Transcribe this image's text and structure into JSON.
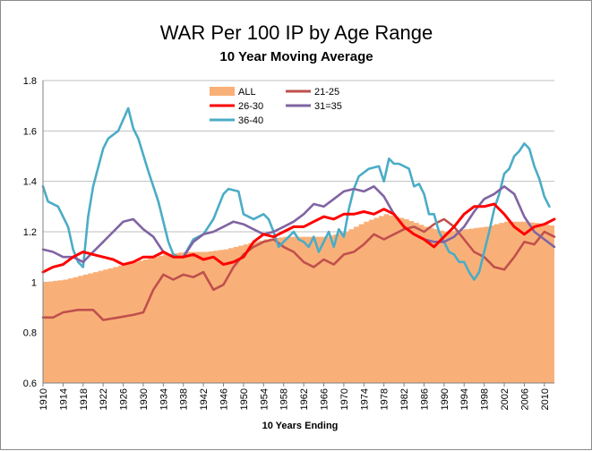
{
  "colors": {
    "ALL": "#f9b078",
    "21-25": "#c0504d",
    "26-30": "#ff0000",
    "31=35": "#8064a2",
    "36-40": "#4bacc6"
  },
  "chart_data": {
    "type": "line",
    "title": "WAR Per 100 IP by Age Range",
    "subtitle": "10 Year Moving Average",
    "xlabel": "10 Years Ending",
    "ylabel": "",
    "ylim": [
      0.6,
      1.8
    ],
    "yticks": [
      "0.6",
      "0.8",
      "1",
      "1.2",
      "1.4",
      "1.6",
      "1.8"
    ],
    "xlim": [
      1910,
      2012
    ],
    "xticks": [
      "1910",
      "1914",
      "1918",
      "1922",
      "1926",
      "1930",
      "1934",
      "1938",
      "1942",
      "1946",
      "1950",
      "1954",
      "1958",
      "1962",
      "1966",
      "1970",
      "1974",
      "1978",
      "1982",
      "1986",
      "1990",
      "1994",
      "1998",
      "2002",
      "2006",
      "2010"
    ],
    "grid": "horizontal",
    "legend": "top-center",
    "legend_order": [
      "ALL",
      "21-25",
      "26-30",
      "31=35",
      "36-40"
    ],
    "series": [
      {
        "name": "ALL",
        "kind": "area",
        "points": [
          [
            1910,
            1.0
          ],
          [
            1914,
            1.01
          ],
          [
            1918,
            1.03
          ],
          [
            1922,
            1.05
          ],
          [
            1926,
            1.07
          ],
          [
            1930,
            1.09
          ],
          [
            1934,
            1.11
          ],
          [
            1938,
            1.12
          ],
          [
            1942,
            1.12
          ],
          [
            1946,
            1.13
          ],
          [
            1950,
            1.15
          ],
          [
            1954,
            1.17
          ],
          [
            1958,
            1.18
          ],
          [
            1962,
            1.18
          ],
          [
            1966,
            1.18
          ],
          [
            1970,
            1.2
          ],
          [
            1974,
            1.24
          ],
          [
            1978,
            1.27
          ],
          [
            1982,
            1.25
          ],
          [
            1986,
            1.22
          ],
          [
            1990,
            1.2
          ],
          [
            1994,
            1.21
          ],
          [
            1998,
            1.22
          ],
          [
            2002,
            1.24
          ],
          [
            2006,
            1.24
          ],
          [
            2010,
            1.23
          ],
          [
            2012,
            1.22
          ]
        ]
      },
      {
        "name": "21-25",
        "kind": "line",
        "points": [
          [
            1910,
            0.86
          ],
          [
            1912,
            0.86
          ],
          [
            1914,
            0.88
          ],
          [
            1917,
            0.89
          ],
          [
            1920,
            0.89
          ],
          [
            1922,
            0.85
          ],
          [
            1925,
            0.86
          ],
          [
            1928,
            0.87
          ],
          [
            1930,
            0.88
          ],
          [
            1932,
            0.97
          ],
          [
            1934,
            1.03
          ],
          [
            1936,
            1.01
          ],
          [
            1938,
            1.03
          ],
          [
            1940,
            1.02
          ],
          [
            1942,
            1.04
          ],
          [
            1944,
            0.97
          ],
          [
            1946,
            0.99
          ],
          [
            1948,
            1.06
          ],
          [
            1950,
            1.11
          ],
          [
            1952,
            1.14
          ],
          [
            1954,
            1.16
          ],
          [
            1956,
            1.17
          ],
          [
            1958,
            1.14
          ],
          [
            1960,
            1.12
          ],
          [
            1962,
            1.08
          ],
          [
            1964,
            1.06
          ],
          [
            1966,
            1.09
          ],
          [
            1968,
            1.07
          ],
          [
            1970,
            1.11
          ],
          [
            1972,
            1.12
          ],
          [
            1974,
            1.15
          ],
          [
            1976,
            1.19
          ],
          [
            1978,
            1.17
          ],
          [
            1980,
            1.19
          ],
          [
            1982,
            1.21
          ],
          [
            1984,
            1.22
          ],
          [
            1986,
            1.2
          ],
          [
            1988,
            1.23
          ],
          [
            1990,
            1.25
          ],
          [
            1992,
            1.22
          ],
          [
            1994,
            1.17
          ],
          [
            1996,
            1.12
          ],
          [
            1998,
            1.1
          ],
          [
            2000,
            1.06
          ],
          [
            2002,
            1.05
          ],
          [
            2004,
            1.1
          ],
          [
            2006,
            1.16
          ],
          [
            2008,
            1.15
          ],
          [
            2010,
            1.2
          ],
          [
            2012,
            1.18
          ]
        ]
      },
      {
        "name": "26-30",
        "kind": "line",
        "points": [
          [
            1910,
            1.04
          ],
          [
            1912,
            1.06
          ],
          [
            1914,
            1.07
          ],
          [
            1916,
            1.1
          ],
          [
            1918,
            1.12
          ],
          [
            1920,
            1.11
          ],
          [
            1922,
            1.1
          ],
          [
            1924,
            1.09
          ],
          [
            1926,
            1.07
          ],
          [
            1928,
            1.08
          ],
          [
            1930,
            1.1
          ],
          [
            1932,
            1.1
          ],
          [
            1934,
            1.12
          ],
          [
            1936,
            1.1
          ],
          [
            1938,
            1.1
          ],
          [
            1940,
            1.11
          ],
          [
            1942,
            1.09
          ],
          [
            1944,
            1.1
          ],
          [
            1946,
            1.07
          ],
          [
            1948,
            1.08
          ],
          [
            1950,
            1.1
          ],
          [
            1952,
            1.16
          ],
          [
            1954,
            1.19
          ],
          [
            1956,
            1.18
          ],
          [
            1958,
            1.2
          ],
          [
            1960,
            1.22
          ],
          [
            1962,
            1.22
          ],
          [
            1964,
            1.24
          ],
          [
            1966,
            1.26
          ],
          [
            1968,
            1.25
          ],
          [
            1970,
            1.27
          ],
          [
            1972,
            1.27
          ],
          [
            1974,
            1.28
          ],
          [
            1976,
            1.27
          ],
          [
            1978,
            1.29
          ],
          [
            1980,
            1.27
          ],
          [
            1982,
            1.22
          ],
          [
            1984,
            1.19
          ],
          [
            1986,
            1.17
          ],
          [
            1988,
            1.14
          ],
          [
            1990,
            1.18
          ],
          [
            1992,
            1.22
          ],
          [
            1994,
            1.27
          ],
          [
            1996,
            1.3
          ],
          [
            1998,
            1.3
          ],
          [
            2000,
            1.31
          ],
          [
            2002,
            1.27
          ],
          [
            2004,
            1.22
          ],
          [
            2006,
            1.19
          ],
          [
            2008,
            1.22
          ],
          [
            2010,
            1.23
          ],
          [
            2012,
            1.25
          ]
        ]
      },
      {
        "name": "31=35",
        "kind": "line",
        "points": [
          [
            1910,
            1.13
          ],
          [
            1912,
            1.12
          ],
          [
            1914,
            1.1
          ],
          [
            1916,
            1.1
          ],
          [
            1918,
            1.08
          ],
          [
            1920,
            1.12
          ],
          [
            1922,
            1.16
          ],
          [
            1924,
            1.2
          ],
          [
            1926,
            1.24
          ],
          [
            1928,
            1.25
          ],
          [
            1930,
            1.21
          ],
          [
            1932,
            1.18
          ],
          [
            1934,
            1.12
          ],
          [
            1936,
            1.1
          ],
          [
            1938,
            1.1
          ],
          [
            1940,
            1.16
          ],
          [
            1942,
            1.19
          ],
          [
            1944,
            1.2
          ],
          [
            1946,
            1.22
          ],
          [
            1948,
            1.24
          ],
          [
            1950,
            1.23
          ],
          [
            1952,
            1.21
          ],
          [
            1954,
            1.19
          ],
          [
            1956,
            1.2
          ],
          [
            1958,
            1.22
          ],
          [
            1960,
            1.24
          ],
          [
            1962,
            1.27
          ],
          [
            1964,
            1.31
          ],
          [
            1966,
            1.3
          ],
          [
            1968,
            1.33
          ],
          [
            1970,
            1.36
          ],
          [
            1972,
            1.37
          ],
          [
            1974,
            1.36
          ],
          [
            1976,
            1.38
          ],
          [
            1978,
            1.34
          ],
          [
            1980,
            1.27
          ],
          [
            1982,
            1.22
          ],
          [
            1984,
            1.19
          ],
          [
            1986,
            1.17
          ],
          [
            1988,
            1.16
          ],
          [
            1990,
            1.16
          ],
          [
            1992,
            1.18
          ],
          [
            1994,
            1.22
          ],
          [
            1996,
            1.28
          ],
          [
            1998,
            1.33
          ],
          [
            2000,
            1.35
          ],
          [
            2002,
            1.38
          ],
          [
            2004,
            1.35
          ],
          [
            2006,
            1.26
          ],
          [
            2008,
            1.2
          ],
          [
            2010,
            1.17
          ],
          [
            2012,
            1.14
          ]
        ]
      },
      {
        "name": "36-40",
        "kind": "line",
        "points": [
          [
            1910,
            1.38
          ],
          [
            1911,
            1.32
          ],
          [
            1913,
            1.3
          ],
          [
            1915,
            1.22
          ],
          [
            1916,
            1.13
          ],
          [
            1917,
            1.08
          ],
          [
            1918,
            1.06
          ],
          [
            1919,
            1.26
          ],
          [
            1920,
            1.38
          ],
          [
            1922,
            1.53
          ],
          [
            1923,
            1.57
          ],
          [
            1925,
            1.6
          ],
          [
            1927,
            1.69
          ],
          [
            1928,
            1.61
          ],
          [
            1929,
            1.57
          ],
          [
            1931,
            1.44
          ],
          [
            1933,
            1.32
          ],
          [
            1935,
            1.16
          ],
          [
            1936,
            1.11
          ],
          [
            1937,
            1.1
          ],
          [
            1938,
            1.1
          ],
          [
            1940,
            1.17
          ],
          [
            1942,
            1.19
          ],
          [
            1944,
            1.25
          ],
          [
            1946,
            1.35
          ],
          [
            1947,
            1.37
          ],
          [
            1949,
            1.36
          ],
          [
            1950,
            1.27
          ],
          [
            1952,
            1.25
          ],
          [
            1954,
            1.27
          ],
          [
            1955,
            1.25
          ],
          [
            1956,
            1.2
          ],
          [
            1957,
            1.14
          ],
          [
            1958,
            1.16
          ],
          [
            1960,
            1.2
          ],
          [
            1961,
            1.17
          ],
          [
            1962,
            1.16
          ],
          [
            1963,
            1.14
          ],
          [
            1964,
            1.18
          ],
          [
            1965,
            1.12
          ],
          [
            1967,
            1.2
          ],
          [
            1968,
            1.14
          ],
          [
            1969,
            1.21
          ],
          [
            1970,
            1.18
          ],
          [
            1971,
            1.29
          ],
          [
            1972,
            1.37
          ],
          [
            1973,
            1.42
          ],
          [
            1975,
            1.45
          ],
          [
            1977,
            1.46
          ],
          [
            1978,
            1.4
          ],
          [
            1979,
            1.49
          ],
          [
            1980,
            1.47
          ],
          [
            1981,
            1.47
          ],
          [
            1983,
            1.45
          ],
          [
            1984,
            1.38
          ],
          [
            1985,
            1.39
          ],
          [
            1986,
            1.35
          ],
          [
            1987,
            1.27
          ],
          [
            1988,
            1.27
          ],
          [
            1989,
            1.2
          ],
          [
            1990,
            1.16
          ],
          [
            1991,
            1.12
          ],
          [
            1992,
            1.11
          ],
          [
            1993,
            1.08
          ],
          [
            1994,
            1.08
          ],
          [
            1995,
            1.04
          ],
          [
            1996,
            1.01
          ],
          [
            1997,
            1.04
          ],
          [
            1998,
            1.12
          ],
          [
            1999,
            1.2
          ],
          [
            2000,
            1.29
          ],
          [
            2001,
            1.35
          ],
          [
            2002,
            1.43
          ],
          [
            2003,
            1.45
          ],
          [
            2004,
            1.5
          ],
          [
            2005,
            1.52
          ],
          [
            2006,
            1.55
          ],
          [
            2007,
            1.53
          ],
          [
            2008,
            1.46
          ],
          [
            2009,
            1.41
          ],
          [
            2010,
            1.34
          ],
          [
            2011,
            1.3
          ]
        ]
      }
    ]
  }
}
